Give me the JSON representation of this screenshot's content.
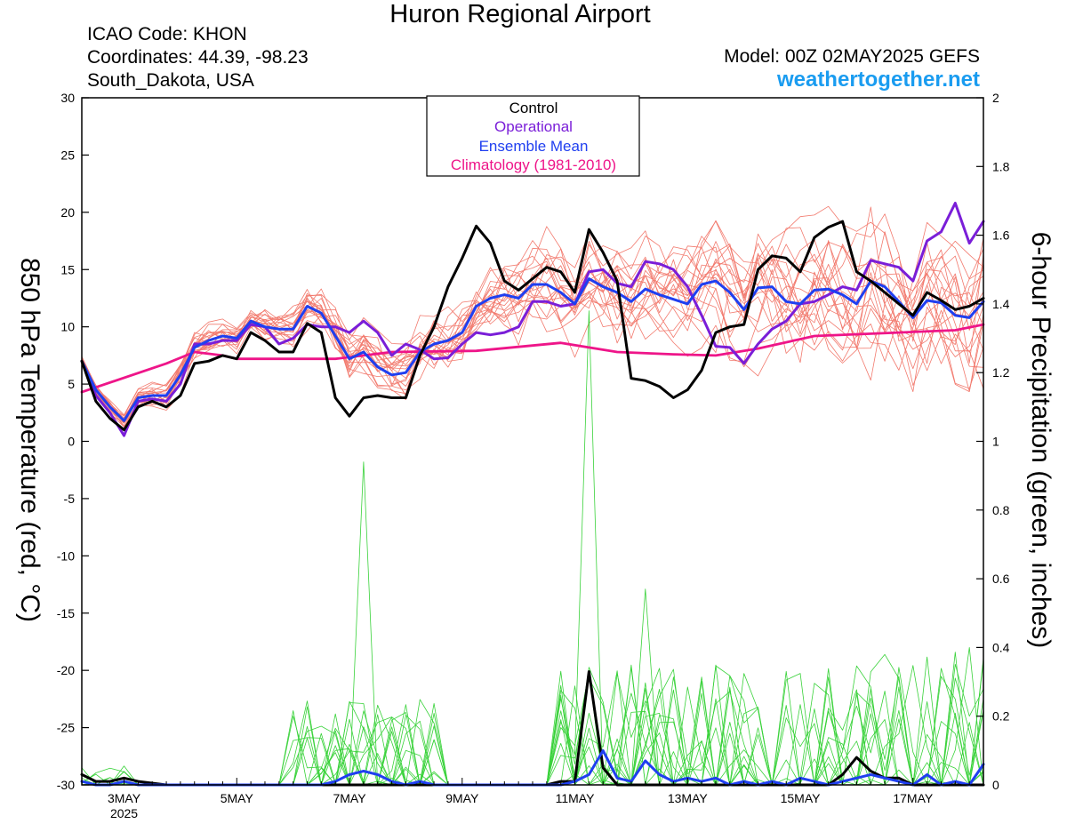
{
  "header": {
    "title": "Huron Regional Airport",
    "icao": "ICAO Code: KHON",
    "coords": "Coordinates: 44.39, -98.23",
    "location": "South_Dakota, USA",
    "model": "Model: 00Z 02MAY2025 GEFS",
    "site": "weathertogether.net"
  },
  "legend": {
    "control": "Control",
    "operational": "Operational",
    "mean": "Ensemble Mean",
    "clim": "Climatology (1981-2010)"
  },
  "colors": {
    "control": "#000000",
    "operational": "#7a1ed8",
    "mean": "#1f3ff0",
    "clim": "#ee1589",
    "members": "#f27a6e",
    "precip": "#39d23a",
    "site": "#1a9cf0"
  },
  "chart_data": {
    "type": "line",
    "title": "Huron Regional Airport",
    "ylabel_left": "850 hPa Temperature (red, °C)",
    "ylabel_right": "6-hour Precipitation (green, inches)",
    "ylim_left": [
      -30,
      30
    ],
    "ylim_right": [
      0,
      2
    ],
    "yticks_left": [
      "30",
      "25",
      "20",
      "15",
      "10",
      "5",
      "0",
      "-5",
      "-10",
      "-15",
      "-20",
      "-25",
      "-30"
    ],
    "yticks_right": [
      "2",
      "1.8",
      "1.6",
      "1.4",
      "1.2",
      "1",
      "0.8",
      "0.6",
      "0.4",
      "0.2",
      "0"
    ],
    "xlim_hours": [
      0,
      384
    ],
    "xticks": [
      {
        "label": "3MAY",
        "hour": 18
      },
      {
        "label": "5MAY",
        "hour": 66
      },
      {
        "label": "7MAY",
        "hour": 114
      },
      {
        "label": "9MAY",
        "hour": 162
      },
      {
        "label": "11MAY",
        "hour": 210
      },
      {
        "label": "13MAY",
        "hour": 258
      },
      {
        "label": "15MAY",
        "hour": 306
      },
      {
        "label": "17MAY",
        "hour": 354
      }
    ],
    "year_label": "2025",
    "grid": false,
    "legend_position": "top-center",
    "temp_series": {
      "control": [
        [
          0,
          7
        ],
        [
          6,
          3.5
        ],
        [
          12,
          2
        ],
        [
          18,
          1
        ],
        [
          24,
          3
        ],
        [
          30,
          3.5
        ],
        [
          36,
          3
        ],
        [
          42,
          4
        ],
        [
          48,
          6.8
        ],
        [
          54,
          7
        ],
        [
          60,
          7.5
        ],
        [
          66,
          7.2
        ],
        [
          72,
          9.5
        ],
        [
          78,
          8.8
        ],
        [
          84,
          7.8
        ],
        [
          90,
          7.8
        ],
        [
          96,
          10.3
        ],
        [
          102,
          9.5
        ],
        [
          108,
          3.8
        ],
        [
          114,
          2.2
        ],
        [
          120,
          3.8
        ],
        [
          126,
          4
        ],
        [
          132,
          3.8
        ],
        [
          138,
          3.8
        ],
        [
          144,
          7.5
        ],
        [
          150,
          10
        ],
        [
          156,
          13.5
        ],
        [
          162,
          16
        ],
        [
          168,
          18.8
        ],
        [
          174,
          17.3
        ],
        [
          180,
          14
        ],
        [
          186,
          13.2
        ],
        [
          192,
          14.2
        ],
        [
          198,
          15.2
        ],
        [
          204,
          14.8
        ],
        [
          210,
          13
        ],
        [
          216,
          18.5
        ],
        [
          222,
          16.5
        ],
        [
          228,
          14
        ],
        [
          234,
          5.5
        ],
        [
          240,
          5.3
        ],
        [
          246,
          4.8
        ],
        [
          252,
          3.8
        ],
        [
          258,
          4.5
        ],
        [
          264,
          6.2
        ],
        [
          270,
          9.5
        ],
        [
          276,
          10
        ],
        [
          282,
          10.2
        ],
        [
          288,
          15
        ],
        [
          294,
          16.2
        ],
        [
          300,
          16
        ],
        [
          306,
          14.8
        ],
        [
          312,
          17.8
        ],
        [
          318,
          18.7
        ],
        [
          324,
          19.2
        ],
        [
          330,
          14.8
        ],
        [
          336,
          14
        ],
        [
          342,
          13
        ],
        [
          348,
          12
        ],
        [
          354,
          11
        ],
        [
          360,
          13
        ],
        [
          366,
          12.3
        ],
        [
          372,
          11.5
        ],
        [
          378,
          11.8
        ],
        [
          384,
          12.5
        ]
      ],
      "operational": [
        [
          0,
          7
        ],
        [
          6,
          4
        ],
        [
          12,
          2.5
        ],
        [
          18,
          0.5
        ],
        [
          24,
          3.5
        ],
        [
          30,
          3.7
        ],
        [
          36,
          3.5
        ],
        [
          42,
          5
        ],
        [
          48,
          8.5
        ],
        [
          54,
          8.5
        ],
        [
          60,
          8.8
        ],
        [
          66,
          8.8
        ],
        [
          72,
          10.2
        ],
        [
          78,
          10
        ],
        [
          84,
          8.5
        ],
        [
          90,
          9
        ],
        [
          96,
          10.2
        ],
        [
          102,
          10
        ],
        [
          108,
          10
        ],
        [
          114,
          9.5
        ],
        [
          120,
          10.5
        ],
        [
          126,
          9.5
        ],
        [
          132,
          7.5
        ],
        [
          138,
          8.5
        ],
        [
          144,
          8
        ],
        [
          150,
          7.2
        ],
        [
          156,
          7.3
        ],
        [
          162,
          8.5
        ],
        [
          168,
          9.5
        ],
        [
          174,
          9.3
        ],
        [
          180,
          9.5
        ],
        [
          186,
          10
        ],
        [
          192,
          12.2
        ],
        [
          198,
          12.2
        ],
        [
          204,
          11.8
        ],
        [
          210,
          12
        ],
        [
          216,
          14.8
        ],
        [
          222,
          15
        ],
        [
          228,
          13.8
        ],
        [
          234,
          13.5
        ],
        [
          240,
          15.7
        ],
        [
          246,
          15.5
        ],
        [
          252,
          15
        ],
        [
          258,
          13.5
        ],
        [
          264,
          11
        ],
        [
          270,
          8.3
        ],
        [
          276,
          8.2
        ],
        [
          282,
          6.8
        ],
        [
          288,
          8.5
        ],
        [
          294,
          9.8
        ],
        [
          300,
          10.5
        ],
        [
          306,
          12
        ],
        [
          312,
          12.2
        ],
        [
          318,
          12.8
        ],
        [
          324,
          13.5
        ],
        [
          330,
          13.2
        ],
        [
          336,
          15.8
        ],
        [
          342,
          15.5
        ],
        [
          348,
          15.2
        ],
        [
          354,
          14
        ],
        [
          360,
          17.5
        ],
        [
          366,
          18.3
        ],
        [
          372,
          20.8
        ],
        [
          378,
          17.3
        ],
        [
          384,
          19.2
        ]
      ],
      "ensemble_mean": [
        [
          0,
          7
        ],
        [
          6,
          4.5
        ],
        [
          12,
          3
        ],
        [
          18,
          1.8
        ],
        [
          24,
          3.8
        ],
        [
          30,
          4
        ],
        [
          36,
          4
        ],
        [
          42,
          5.8
        ],
        [
          48,
          8.2
        ],
        [
          54,
          8.8
        ],
        [
          60,
          9.2
        ],
        [
          66,
          9
        ],
        [
          72,
          10.5
        ],
        [
          78,
          10
        ],
        [
          84,
          9.8
        ],
        [
          90,
          9.8
        ],
        [
          96,
          11.8
        ],
        [
          102,
          11.2
        ],
        [
          108,
          9.2
        ],
        [
          114,
          7.2
        ],
        [
          120,
          7.8
        ],
        [
          126,
          6.5
        ],
        [
          132,
          5.8
        ],
        [
          138,
          6
        ],
        [
          144,
          7.8
        ],
        [
          150,
          8.5
        ],
        [
          156,
          8.8
        ],
        [
          162,
          9.5
        ],
        [
          168,
          11.8
        ],
        [
          174,
          12.5
        ],
        [
          180,
          12.8
        ],
        [
          186,
          12.5
        ],
        [
          192,
          13.7
        ],
        [
          198,
          13.7
        ],
        [
          204,
          13
        ],
        [
          210,
          12
        ],
        [
          216,
          14.2
        ],
        [
          222,
          13.5
        ],
        [
          228,
          13
        ],
        [
          234,
          12.2
        ],
        [
          240,
          13.3
        ],
        [
          246,
          12.8
        ],
        [
          252,
          12.4
        ],
        [
          258,
          12
        ],
        [
          264,
          13.7
        ],
        [
          270,
          14
        ],
        [
          276,
          13
        ],
        [
          282,
          11.5
        ],
        [
          288,
          13.4
        ],
        [
          294,
          13.5
        ],
        [
          300,
          12.2
        ],
        [
          306,
          12
        ],
        [
          312,
          13.2
        ],
        [
          318,
          13.3
        ],
        [
          324,
          12.8
        ],
        [
          330,
          12
        ],
        [
          336,
          14
        ],
        [
          342,
          13.5
        ],
        [
          348,
          12.2
        ],
        [
          354,
          10.8
        ],
        [
          360,
          12.3
        ],
        [
          366,
          12.1
        ],
        [
          372,
          11
        ],
        [
          378,
          10.8
        ],
        [
          384,
          12.2
        ]
      ],
      "climatology": [
        [
          0,
          4.3
        ],
        [
          36,
          6.8
        ],
        [
          48,
          7.8
        ],
        [
          60,
          7.5
        ],
        [
          66,
          7.2
        ],
        [
          84,
          7.2
        ],
        [
          108,
          7.2
        ],
        [
          132,
          7.8
        ],
        [
          168,
          7.9
        ],
        [
          204,
          8.6
        ],
        [
          228,
          7.8
        ],
        [
          252,
          7.6
        ],
        [
          270,
          7.5
        ],
        [
          288,
          8.1
        ],
        [
          312,
          9.2
        ],
        [
          348,
          9.5
        ],
        [
          372,
          9.7
        ],
        [
          384,
          10.2
        ]
      ]
    },
    "precip_series": {
      "control": [
        [
          0,
          0.03
        ],
        [
          6,
          0.01
        ],
        [
          12,
          0.01
        ],
        [
          18,
          0.02
        ],
        [
          24,
          0.01
        ],
        [
          36,
          0
        ],
        [
          186,
          0
        ],
        [
          198,
          0
        ],
        [
          204,
          0.01
        ],
        [
          210,
          0.01
        ],
        [
          216,
          0.33
        ],
        [
          222,
          0.05
        ],
        [
          228,
          0
        ],
        [
          252,
          0
        ],
        [
          288,
          0
        ],
        [
          312,
          0
        ],
        [
          318,
          0
        ],
        [
          324,
          0.03
        ],
        [
          330,
          0.08
        ],
        [
          336,
          0.04
        ],
        [
          342,
          0.02
        ],
        [
          348,
          0.02
        ],
        [
          354,
          0
        ],
        [
          384,
          0
        ]
      ],
      "ensemble_mean": [
        [
          0,
          0.01
        ],
        [
          6,
          0
        ],
        [
          12,
          0
        ],
        [
          18,
          0.01
        ],
        [
          24,
          0
        ],
        [
          96,
          0
        ],
        [
          102,
          0
        ],
        [
          108,
          0.01
        ],
        [
          114,
          0.03
        ],
        [
          120,
          0.04
        ],
        [
          126,
          0.03
        ],
        [
          132,
          0.01
        ],
        [
          138,
          0
        ],
        [
          144,
          0.01
        ],
        [
          150,
          0
        ],
        [
          204,
          0
        ],
        [
          210,
          0.01
        ],
        [
          216,
          0.03
        ],
        [
          222,
          0.1
        ],
        [
          228,
          0.02
        ],
        [
          234,
          0.01
        ],
        [
          240,
          0.07
        ],
        [
          246,
          0.03
        ],
        [
          252,
          0.01
        ],
        [
          258,
          0.02
        ],
        [
          264,
          0.01
        ],
        [
          270,
          0.02
        ],
        [
          276,
          0
        ],
        [
          282,
          0.01
        ],
        [
          288,
          0
        ],
        [
          294,
          0.01
        ],
        [
          300,
          0
        ],
        [
          306,
          0.02
        ],
        [
          312,
          0.01
        ],
        [
          318,
          0
        ],
        [
          324,
          0.01
        ],
        [
          330,
          0.02
        ],
        [
          336,
          0.03
        ],
        [
          342,
          0.02
        ],
        [
          348,
          0.01
        ],
        [
          354,
          0
        ],
        [
          360,
          0.03
        ],
        [
          366,
          0
        ],
        [
          372,
          0.01
        ],
        [
          378,
          0
        ],
        [
          384,
          0.06
        ]
      ]
    }
  }
}
